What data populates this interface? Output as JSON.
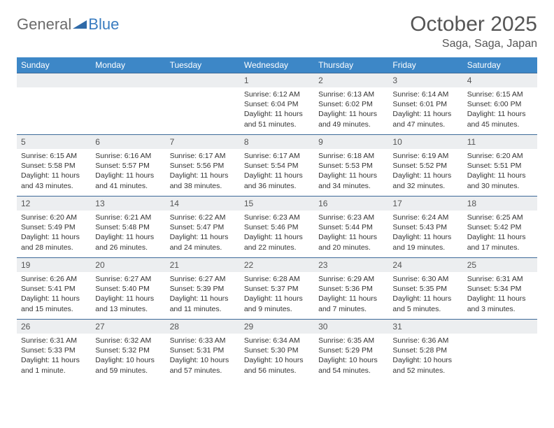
{
  "logo": {
    "text1": "General",
    "text2": "Blue",
    "shape_color": "#2f6aa8"
  },
  "title": "October 2025",
  "location": "Saga, Saga, Japan",
  "colors": {
    "header_bg": "#3d87c7",
    "header_text": "#ffffff",
    "row_divider": "#3d6a98",
    "daynum_bg": "#eceef0",
    "body_text": "#333333",
    "title_text": "#555555"
  },
  "day_headers": [
    "Sunday",
    "Monday",
    "Tuesday",
    "Wednesday",
    "Thursday",
    "Friday",
    "Saturday"
  ],
  "weeks": [
    [
      {
        "n": "",
        "lines": []
      },
      {
        "n": "",
        "lines": []
      },
      {
        "n": "",
        "lines": []
      },
      {
        "n": "1",
        "lines": [
          "Sunrise: 6:12 AM",
          "Sunset: 6:04 PM",
          "Daylight: 11 hours and 51 minutes."
        ]
      },
      {
        "n": "2",
        "lines": [
          "Sunrise: 6:13 AM",
          "Sunset: 6:02 PM",
          "Daylight: 11 hours and 49 minutes."
        ]
      },
      {
        "n": "3",
        "lines": [
          "Sunrise: 6:14 AM",
          "Sunset: 6:01 PM",
          "Daylight: 11 hours and 47 minutes."
        ]
      },
      {
        "n": "4",
        "lines": [
          "Sunrise: 6:15 AM",
          "Sunset: 6:00 PM",
          "Daylight: 11 hours and 45 minutes."
        ]
      }
    ],
    [
      {
        "n": "5",
        "lines": [
          "Sunrise: 6:15 AM",
          "Sunset: 5:58 PM",
          "Daylight: 11 hours and 43 minutes."
        ]
      },
      {
        "n": "6",
        "lines": [
          "Sunrise: 6:16 AM",
          "Sunset: 5:57 PM",
          "Daylight: 11 hours and 41 minutes."
        ]
      },
      {
        "n": "7",
        "lines": [
          "Sunrise: 6:17 AM",
          "Sunset: 5:56 PM",
          "Daylight: 11 hours and 38 minutes."
        ]
      },
      {
        "n": "8",
        "lines": [
          "Sunrise: 6:17 AM",
          "Sunset: 5:54 PM",
          "Daylight: 11 hours and 36 minutes."
        ]
      },
      {
        "n": "9",
        "lines": [
          "Sunrise: 6:18 AM",
          "Sunset: 5:53 PM",
          "Daylight: 11 hours and 34 minutes."
        ]
      },
      {
        "n": "10",
        "lines": [
          "Sunrise: 6:19 AM",
          "Sunset: 5:52 PM",
          "Daylight: 11 hours and 32 minutes."
        ]
      },
      {
        "n": "11",
        "lines": [
          "Sunrise: 6:20 AM",
          "Sunset: 5:51 PM",
          "Daylight: 11 hours and 30 minutes."
        ]
      }
    ],
    [
      {
        "n": "12",
        "lines": [
          "Sunrise: 6:20 AM",
          "Sunset: 5:49 PM",
          "Daylight: 11 hours and 28 minutes."
        ]
      },
      {
        "n": "13",
        "lines": [
          "Sunrise: 6:21 AM",
          "Sunset: 5:48 PM",
          "Daylight: 11 hours and 26 minutes."
        ]
      },
      {
        "n": "14",
        "lines": [
          "Sunrise: 6:22 AM",
          "Sunset: 5:47 PM",
          "Daylight: 11 hours and 24 minutes."
        ]
      },
      {
        "n": "15",
        "lines": [
          "Sunrise: 6:23 AM",
          "Sunset: 5:46 PM",
          "Daylight: 11 hours and 22 minutes."
        ]
      },
      {
        "n": "16",
        "lines": [
          "Sunrise: 6:23 AM",
          "Sunset: 5:44 PM",
          "Daylight: 11 hours and 20 minutes."
        ]
      },
      {
        "n": "17",
        "lines": [
          "Sunrise: 6:24 AM",
          "Sunset: 5:43 PM",
          "Daylight: 11 hours and 19 minutes."
        ]
      },
      {
        "n": "18",
        "lines": [
          "Sunrise: 6:25 AM",
          "Sunset: 5:42 PM",
          "Daylight: 11 hours and 17 minutes."
        ]
      }
    ],
    [
      {
        "n": "19",
        "lines": [
          "Sunrise: 6:26 AM",
          "Sunset: 5:41 PM",
          "Daylight: 11 hours and 15 minutes."
        ]
      },
      {
        "n": "20",
        "lines": [
          "Sunrise: 6:27 AM",
          "Sunset: 5:40 PM",
          "Daylight: 11 hours and 13 minutes."
        ]
      },
      {
        "n": "21",
        "lines": [
          "Sunrise: 6:27 AM",
          "Sunset: 5:39 PM",
          "Daylight: 11 hours and 11 minutes."
        ]
      },
      {
        "n": "22",
        "lines": [
          "Sunrise: 6:28 AM",
          "Sunset: 5:37 PM",
          "Daylight: 11 hours and 9 minutes."
        ]
      },
      {
        "n": "23",
        "lines": [
          "Sunrise: 6:29 AM",
          "Sunset: 5:36 PM",
          "Daylight: 11 hours and 7 minutes."
        ]
      },
      {
        "n": "24",
        "lines": [
          "Sunrise: 6:30 AM",
          "Sunset: 5:35 PM",
          "Daylight: 11 hours and 5 minutes."
        ]
      },
      {
        "n": "25",
        "lines": [
          "Sunrise: 6:31 AM",
          "Sunset: 5:34 PM",
          "Daylight: 11 hours and 3 minutes."
        ]
      }
    ],
    [
      {
        "n": "26",
        "lines": [
          "Sunrise: 6:31 AM",
          "Sunset: 5:33 PM",
          "Daylight: 11 hours and 1 minute."
        ]
      },
      {
        "n": "27",
        "lines": [
          "Sunrise: 6:32 AM",
          "Sunset: 5:32 PM",
          "Daylight: 10 hours and 59 minutes."
        ]
      },
      {
        "n": "28",
        "lines": [
          "Sunrise: 6:33 AM",
          "Sunset: 5:31 PM",
          "Daylight: 10 hours and 57 minutes."
        ]
      },
      {
        "n": "29",
        "lines": [
          "Sunrise: 6:34 AM",
          "Sunset: 5:30 PM",
          "Daylight: 10 hours and 56 minutes."
        ]
      },
      {
        "n": "30",
        "lines": [
          "Sunrise: 6:35 AM",
          "Sunset: 5:29 PM",
          "Daylight: 10 hours and 54 minutes."
        ]
      },
      {
        "n": "31",
        "lines": [
          "Sunrise: 6:36 AM",
          "Sunset: 5:28 PM",
          "Daylight: 10 hours and 52 minutes."
        ]
      },
      {
        "n": "",
        "lines": []
      }
    ]
  ]
}
